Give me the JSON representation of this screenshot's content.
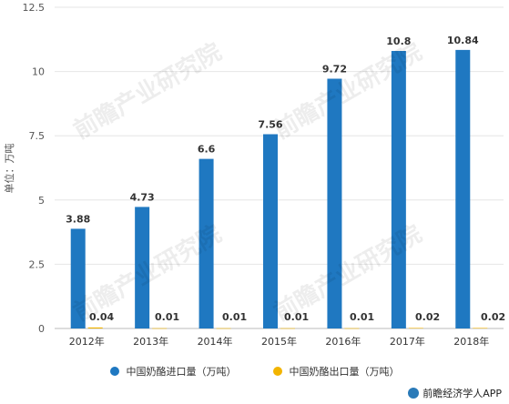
{
  "chart_data": {
    "type": "bar",
    "categories": [
      "2012年",
      "2013年",
      "2014年",
      "2015年",
      "2016年",
      "2017年",
      "2018年"
    ],
    "series": [
      {
        "name": "中国奶酪进口量（万吨）",
        "values": [
          3.88,
          4.73,
          6.6,
          7.56,
          9.72,
          10.8,
          10.84
        ],
        "labels": [
          "3.88",
          "4.73",
          "6.6",
          "7.56",
          "9.72",
          "10.8",
          "10.84"
        ],
        "color": "#1f78c1"
      },
      {
        "name": "中国奶酪出口量（万吨）",
        "values": [
          0.04,
          0.01,
          0.01,
          0.01,
          0.01,
          0.02,
          0.02
        ],
        "labels": [
          "0.04",
          "0.01",
          "0.01",
          "0.01",
          "0.01",
          "0.02",
          "0.02"
        ],
        "color": "#f2b400"
      }
    ],
    "ylabel": "单位：万吨",
    "ylim": [
      0,
      12.5
    ],
    "yticks": [
      0,
      2.5,
      5,
      7.5,
      10,
      12.5
    ],
    "ytick_labels": [
      "0",
      "2.5",
      "5",
      "7.5",
      "10",
      "12.5"
    ],
    "grid": true,
    "legend": "bottom"
  },
  "watermark": "前瞻产业研究院",
  "credit": "前瞻经济学人APP"
}
